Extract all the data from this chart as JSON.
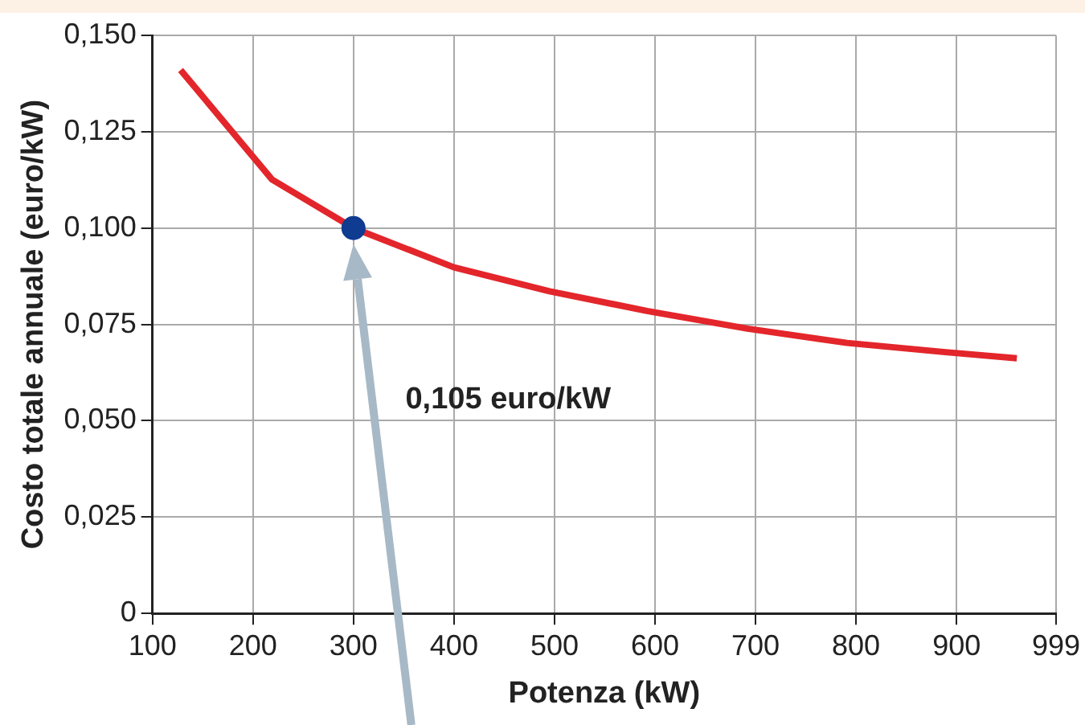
{
  "chart_data": {
    "type": "line",
    "xlabel": "Potenza (kW)",
    "ylabel": "Costo totale annuale (euro/kW)",
    "xlim": [
      100,
      999
    ],
    "xticks": [
      100,
      200,
      300,
      400,
      500,
      600,
      700,
      800,
      900,
      999
    ],
    "ylim": [
      0,
      0.15
    ],
    "yticks": [
      0,
      {
        "value": 0.025,
        "label": "0,025"
      },
      {
        "value": 0.05,
        "label": "0,050"
      },
      {
        "value": 0.075,
        "label": "0,075"
      },
      {
        "value": 0.1,
        "label": "0,100"
      },
      {
        "value": 0.125,
        "label": "0,125"
      },
      {
        "value": 0.15,
        "label": "0,150"
      }
    ],
    "grid": true,
    "legend": false,
    "series": [
      {
        "color": "#e3262b",
        "marker": "none",
        "line_style": "solid",
        "x": [
          128,
          219,
          300,
          400,
          495,
          592,
          692,
          791,
          889,
          960
        ],
        "values": [
          0.141,
          0.1126,
          0.1,
          0.0898,
          0.0836,
          0.0785,
          0.0739,
          0.0702,
          0.0678,
          0.0662
        ]
      },
      {
        "type": "scatter",
        "color": "#0f3b91",
        "marker": "circle",
        "x": [
          300
        ],
        "values": [
          0.1
        ]
      }
    ],
    "annotations": [
      "0,105 euro/kW"
    ]
  }
}
